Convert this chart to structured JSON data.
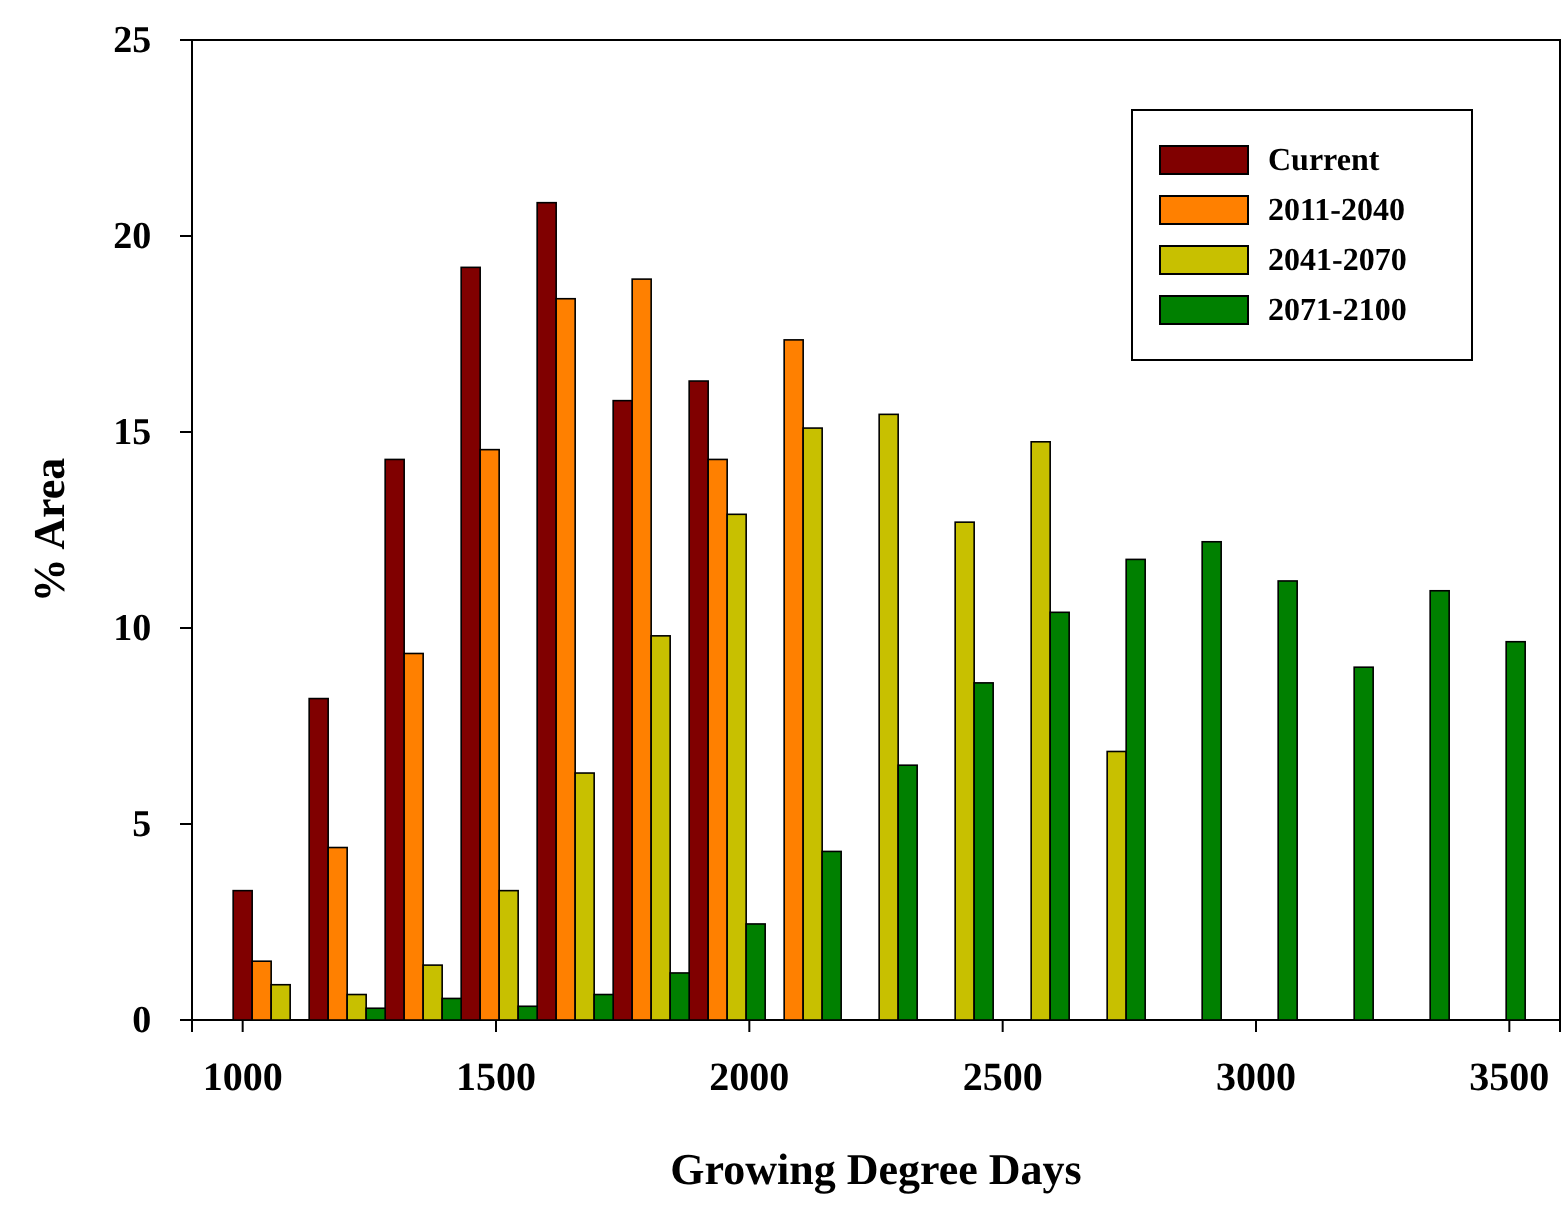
{
  "chart_data": {
    "type": "bar",
    "xlabel": "Growing Degree Days",
    "ylabel": "% Area",
    "xlim": [
      900,
      3600
    ],
    "xticks": [
      1000,
      1500,
      2000,
      2500,
      3000,
      3500
    ],
    "ylim": [
      0,
      25
    ],
    "yticks": [
      0,
      5,
      10,
      15,
      20,
      25
    ],
    "grid": false,
    "legend": "top right",
    "series": [
      {
        "name": "Current",
        "color": "#800000",
        "x": [
          1000,
          1150,
          1300,
          1450,
          1600,
          1750,
          1900
        ],
        "values": [
          3.3,
          8.2,
          14.3,
          19.2,
          20.85,
          15.8,
          16.3
        ]
      },
      {
        "name": "2011-2040",
        "color": "#ff8000",
        "x": [
          1037.5,
          1187.5,
          1337.5,
          1487.5,
          1637.5,
          1787.5,
          1937.5,
          2087.5
        ],
        "values": [
          1.5,
          4.4,
          9.35,
          14.55,
          18.4,
          18.9,
          14.3,
          17.35
        ]
      },
      {
        "name": "2041-2070",
        "color": "#c8c000",
        "x": [
          1075,
          1225,
          1375,
          1525,
          1675,
          1825,
          1975,
          2125,
          2275,
          2425,
          2575,
          2725
        ],
        "values": [
          0.9,
          0.65,
          1.4,
          3.3,
          6.3,
          9.8,
          12.9,
          15.1,
          15.45,
          12.7,
          14.75,
          6.85
        ]
      },
      {
        "name": "2071-2100",
        "color": "#008000",
        "x": [
          1262.5,
          1412.5,
          1562.5,
          1712.5,
          1862.5,
          2012.5,
          2162.5,
          2312.5,
          2462.5,
          2612.5,
          2762.5,
          2912.5,
          3062.5,
          3212.5,
          3362.5,
          3512.5
        ],
        "values": [
          0.3,
          0.55,
          0.35,
          0.65,
          1.2,
          2.45,
          4.3,
          6.5,
          8.6,
          10.4,
          11.75,
          12.2,
          11.2,
          9.0,
          10.95,
          9.65
        ]
      }
    ]
  }
}
